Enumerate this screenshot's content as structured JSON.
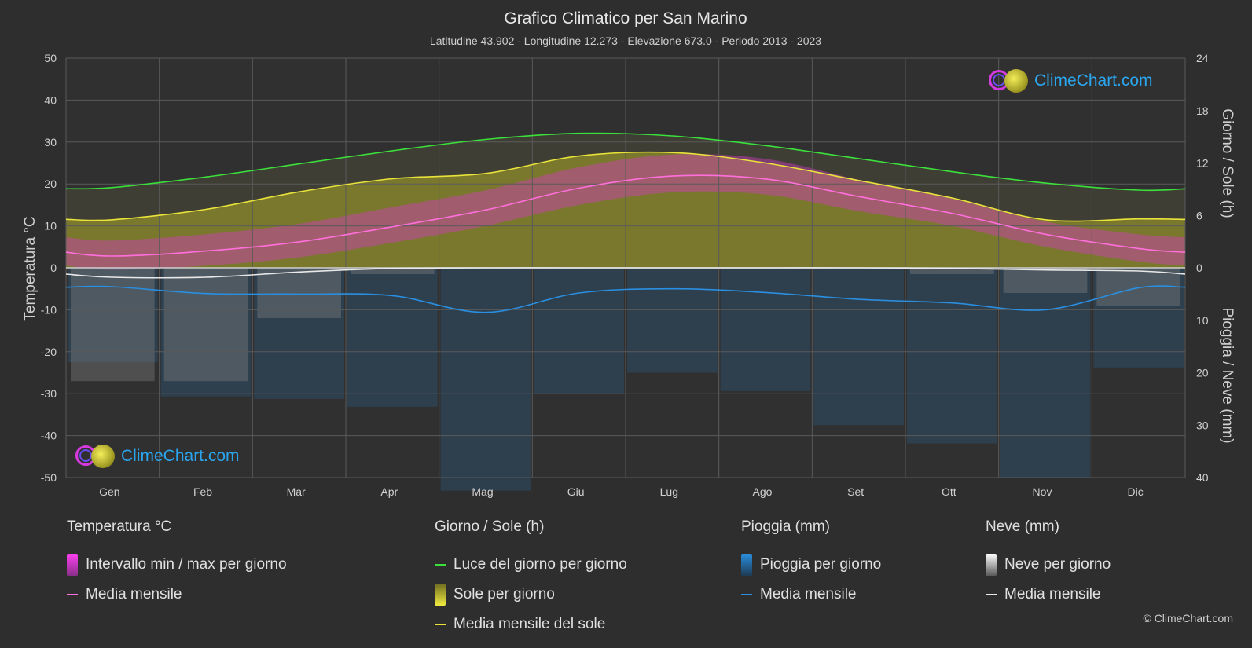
{
  "title": "Grafico Climatico per San Marino",
  "subtitle": "Latitudine 43.902 - Longitudine 12.273 - Elevazione 673.0 - Periodo 2013 - 2023",
  "logo_text": "ClimeChart.com",
  "copyright": "© ClimeChart.com",
  "colors": {
    "background": "#2e2e2e",
    "daylight": "#3be03b",
    "sunshine_line": "#e8e23a",
    "sunshine_fill": "#8f8c2a",
    "temp_mean": "#ff6fdc",
    "temp_range": "#d13cbf",
    "rain_line": "#2a8fe0",
    "rain_bars": "#2b5c86",
    "snow_line": "#e8e8e8",
    "snow_bars": "#8a8a8a",
    "logo": "#2aa7f0"
  },
  "legend": {
    "temperature": {
      "heading": "Temperatura °C",
      "items": [
        "Intervallo min / max per giorno",
        "Media mensile"
      ]
    },
    "day_sun": {
      "heading": "Giorno / Sole (h)",
      "items": [
        "Luce del giorno per giorno",
        "Sole per giorno",
        "Media mensile del sole"
      ]
    },
    "rain": {
      "heading": "Pioggia (mm)",
      "items": [
        "Pioggia per giorno",
        "Media mensile"
      ]
    },
    "snow": {
      "heading": "Neve (mm)",
      "items": [
        "Neve per giorno",
        "Media mensile"
      ]
    }
  },
  "chart_data": {
    "type": "area",
    "months": [
      "Gen",
      "Feb",
      "Mar",
      "Apr",
      "Mag",
      "Giu",
      "Lug",
      "Ago",
      "Set",
      "Ott",
      "Nov",
      "Dic"
    ],
    "axes": {
      "left": {
        "label": "Temperatura °C",
        "range": [
          -50,
          50
        ],
        "ticks": [
          50,
          40,
          30,
          20,
          10,
          0,
          -10,
          -20,
          -30,
          -40,
          -50
        ]
      },
      "right_top": {
        "label": "Giorno / Sole (h)",
        "range": [
          0,
          24
        ],
        "ticks": [
          24,
          18,
          12,
          6,
          0
        ]
      },
      "right_bottom": {
        "label": "Pioggia / Neve (mm)",
        "range": [
          0,
          40
        ],
        "ticks": [
          10,
          20,
          30,
          40
        ]
      }
    },
    "grid": true,
    "series": [
      {
        "name": "Luce del giorno per giorno",
        "unit": "h",
        "values": [
          9.2,
          10.4,
          11.9,
          13.4,
          14.7,
          15.4,
          15.1,
          14.0,
          12.5,
          11.0,
          9.7,
          8.9
        ]
      },
      {
        "name": "Media mensile del sole",
        "unit": "h",
        "values": [
          5.5,
          6.7,
          8.7,
          10.2,
          10.8,
          12.8,
          13.2,
          12.0,
          10.0,
          8.0,
          5.5,
          5.6
        ]
      },
      {
        "name": "Media mensile",
        "group": "Temperatura °C",
        "unit": "°C",
        "values": [
          2.8,
          4.0,
          6.2,
          9.8,
          13.8,
          19.0,
          21.9,
          21.2,
          17.0,
          13.0,
          8.0,
          4.6
        ]
      },
      {
        "name": "Intervallo min / max per giorno",
        "group": "Temperatura °C",
        "unit": "°C",
        "min": [
          -0.5,
          0.5,
          2.5,
          6.0,
          10.0,
          15.0,
          18.0,
          17.5,
          13.5,
          10.0,
          5.0,
          1.5
        ],
        "max": [
          6.5,
          8.0,
          10.5,
          14.5,
          18.5,
          24.0,
          27.0,
          26.0,
          21.0,
          16.5,
          11.0,
          8.0
        ]
      },
      {
        "name": "Media mensile",
        "group": "Pioggia (mm)",
        "unit": "mm",
        "values": [
          3.6,
          4.9,
          5.0,
          5.3,
          8.5,
          4.8,
          4.0,
          4.7,
          6.0,
          6.7,
          8.0,
          3.8
        ]
      },
      {
        "name": "Media mensile",
        "group": "Neve (mm)",
        "unit": "mm",
        "values": [
          1.8,
          1.8,
          0.8,
          0.1,
          0.0,
          0.0,
          0.0,
          0.0,
          0.0,
          0.1,
          0.4,
          0.6
        ]
      }
    ]
  }
}
